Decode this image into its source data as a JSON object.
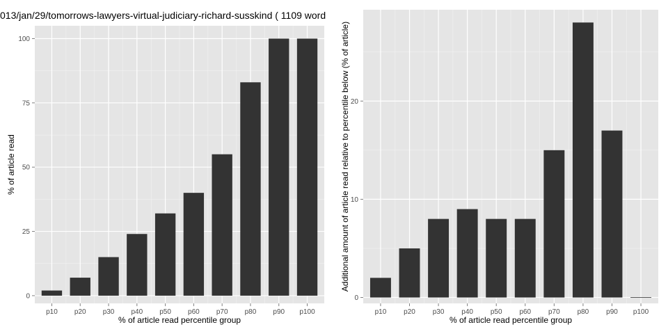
{
  "colors": {
    "panel_bg": "#e5e5e5",
    "grid_major": "#ffffff",
    "grid_minor": "#f2f2f2",
    "bar": "#333333",
    "tick_text": "#4d4d4d",
    "axis_text": "#000000"
  },
  "chart_data": [
    {
      "type": "bar",
      "title": "013/jan/29/tomorrows-lawyers-virtual-judiciary-richard-susskind ( 1109 word",
      "xlabel": "% of article read percentile group",
      "ylabel": "% of article read",
      "categories": [
        "p10",
        "p20",
        "p30",
        "p40",
        "p50",
        "p60",
        "p70",
        "p80",
        "p90",
        "p100"
      ],
      "values": [
        2,
        7,
        15,
        24,
        32,
        40,
        55,
        83,
        100,
        100
      ],
      "ylim": [
        -3,
        105
      ],
      "yticks": [
        0,
        25,
        50,
        75,
        100
      ],
      "yminor": [
        12.5,
        37.5,
        62.5,
        87.5
      ],
      "grid": true,
      "legend": "none"
    },
    {
      "type": "bar",
      "title": "",
      "xlabel": "% of article read percentile group",
      "ylabel": "Additional amount of article read relative to percentile below (% of article)",
      "categories": [
        "p10",
        "p20",
        "p30",
        "p40",
        "p50",
        "p60",
        "p70",
        "p80",
        "p90",
        "p100"
      ],
      "values": [
        2,
        5,
        8,
        9,
        8,
        8,
        15,
        28,
        17,
        0
      ],
      "ylim": [
        -0.6,
        29.3
      ],
      "yticks": [
        0,
        10,
        20
      ],
      "yminor": [
        5,
        15,
        25
      ],
      "grid": true,
      "legend": "none"
    }
  ]
}
